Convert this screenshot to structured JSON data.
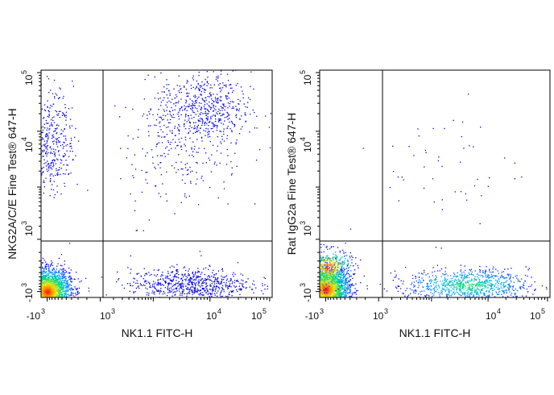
{
  "chart_data": [
    {
      "type": "scatter",
      "subtype": "flow-cytometry-density-dot-plot",
      "name": "left",
      "xlabel": "NK1.1 FITC-H",
      "ylabel": "NKG2A/C/E Fine Test® 647-H",
      "x_ticks": [
        {
          "base": "-10",
          "exp": "3"
        },
        {
          "base": "10",
          "exp": "3"
        },
        {
          "base": "10",
          "exp": "4"
        },
        {
          "base": "10",
          "exp": "5"
        }
      ],
      "y_ticks": [
        {
          "base": "-10",
          "exp": "3"
        },
        {
          "base": "10",
          "exp": "3"
        },
        {
          "base": "10",
          "exp": "4"
        },
        {
          "base": "10",
          "exp": "5"
        }
      ],
      "gate": {
        "x": 1000,
        "y": 700
      },
      "populations": [
        {
          "name": "NK1.1- NKG2A-",
          "x": -1000,
          "y": -1000,
          "density": "very high"
        },
        {
          "name": "NK1.1- NKG2A+",
          "x": -800,
          "y": 6000,
          "density": "low"
        },
        {
          "name": "NK1.1+ NKG2A+",
          "x": 6000,
          "y": 25000,
          "density": "medium"
        },
        {
          "name": "NK1.1+ NKG2A-",
          "x": 4000,
          "y": -700,
          "density": "medium"
        }
      ]
    },
    {
      "type": "scatter",
      "subtype": "flow-cytometry-density-dot-plot",
      "name": "right",
      "xlabel": "NK1.1 FITC-H",
      "ylabel": "Rat IgG2a Fine Test® 647-H",
      "x_ticks": [
        {
          "base": "-10",
          "exp": "3"
        },
        {
          "base": "10",
          "exp": "3"
        },
        {
          "base": "10",
          "exp": "4"
        },
        {
          "base": "10",
          "exp": "5"
        }
      ],
      "y_ticks": [
        {
          "base": "-10",
          "exp": "3"
        },
        {
          "base": "10",
          "exp": "3"
        },
        {
          "base": "10",
          "exp": "4"
        },
        {
          "base": "10",
          "exp": "5"
        }
      ],
      "gate": {
        "x": 1000,
        "y": 700
      },
      "populations": [
        {
          "name": "NK1.1- isotype-",
          "x": -1000,
          "y": -900,
          "density": "very high"
        },
        {
          "name": "NK1.1+ isotype-",
          "x": 5000,
          "y": -700,
          "density": "medium"
        },
        {
          "name": "sparse background",
          "x": 2000,
          "y": 3000,
          "density": "very low"
        }
      ]
    }
  ]
}
